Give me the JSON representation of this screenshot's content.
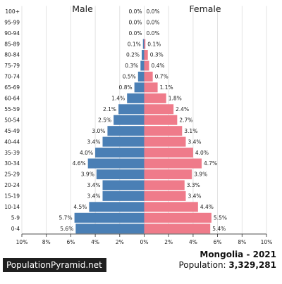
{
  "chart_data": {
    "type": "bar",
    "orientation": "horizontal-population-pyramid",
    "categories": [
      "100+",
      "95-99",
      "90-94",
      "85-89",
      "80-84",
      "75-79",
      "70-74",
      "65-69",
      "60-64",
      "55-59",
      "50-54",
      "45-49",
      "40-44",
      "35-39",
      "30-34",
      "25-29",
      "20-24",
      "15-19",
      "10-14",
      "5-9",
      "0-4"
    ],
    "series": [
      {
        "name": "Male",
        "color": "#4a7fb5",
        "values": [
          0.0,
          0.0,
          0.0,
          0.1,
          0.2,
          0.3,
          0.5,
          0.8,
          1.4,
          2.1,
          2.5,
          3.0,
          3.4,
          4.0,
          4.6,
          3.9,
          3.4,
          3.4,
          4.5,
          5.7,
          5.6
        ]
      },
      {
        "name": "Female",
        "color": "#ef7b8a",
        "values": [
          0.0,
          0.0,
          0.0,
          0.1,
          0.3,
          0.4,
          0.7,
          1.1,
          1.8,
          2.4,
          2.7,
          3.1,
          3.4,
          4.0,
          4.7,
          3.9,
          3.3,
          3.4,
          4.4,
          5.5,
          5.4
        ]
      }
    ],
    "value_labels": {
      "male": [
        "0.0%",
        "0.0%",
        "0.0%",
        "0.1%",
        "0.2%",
        "0.3%",
        "0.5%",
        "0.8%",
        "1.4%",
        "2.1%",
        "2.5%",
        "3.0%",
        "3.4%",
        "4.0%",
        "4.6%",
        "3.9%",
        "3.4%",
        "3.4%",
        "4.5%",
        "5.7%",
        "5.6%"
      ],
      "female": [
        "0.0%",
        "0.0%",
        "0.0%",
        "0.1%",
        "0.3%",
        "0.4%",
        "0.7%",
        "1.1%",
        "1.8%",
        "2.4%",
        "2.7%",
        "3.1%",
        "3.4%",
        "4.0%",
        "4.7%",
        "3.9%",
        "3.3%",
        "3.4%",
        "4.4%",
        "5.5%",
        "5.4%"
      ]
    },
    "xlim": [
      -10,
      10
    ],
    "xtick_labels": [
      "10%",
      "8%",
      "6%",
      "4%",
      "2%",
      "0%",
      "2%",
      "4%",
      "6%",
      "8%",
      "10%"
    ],
    "grid": true
  },
  "labels": {
    "male": "Male",
    "female": "Female",
    "title": "Mongolia - 2021",
    "population_label": "Population:",
    "population_value": "3,329,281",
    "brand": "PopulationPyramid.net"
  }
}
